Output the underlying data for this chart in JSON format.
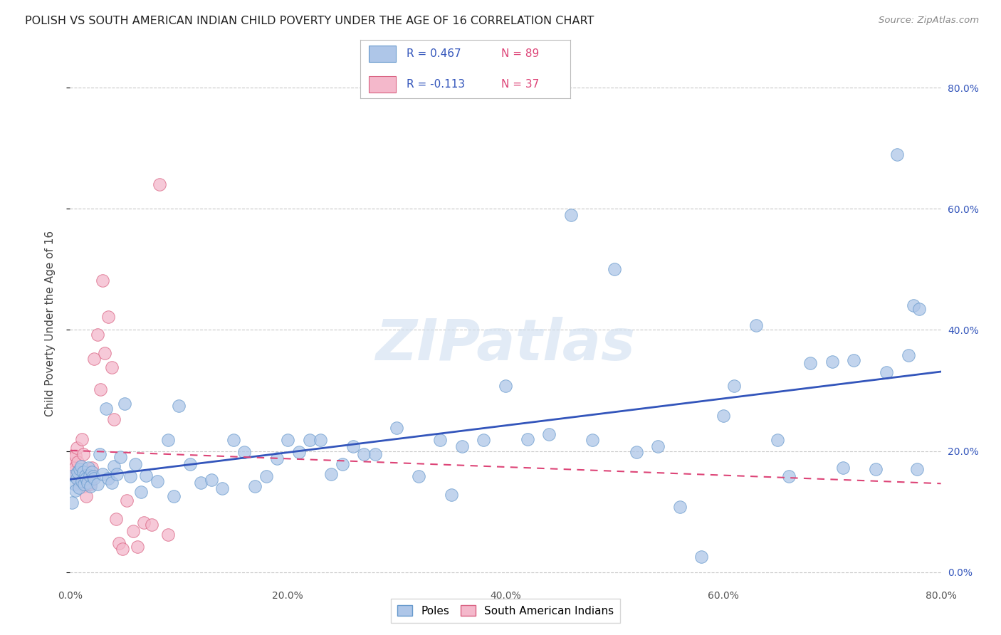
{
  "title": "POLISH VS SOUTH AMERICAN INDIAN CHILD POVERTY UNDER THE AGE OF 16 CORRELATION CHART",
  "source": "Source: ZipAtlas.com",
  "ylabel": "Child Poverty Under the Age of 16",
  "xlim": [
    0,
    0.8
  ],
  "ylim": [
    -0.02,
    0.84
  ],
  "xticks": [
    0.0,
    0.2,
    0.4,
    0.6,
    0.8
  ],
  "yticks": [
    0.0,
    0.2,
    0.4,
    0.6,
    0.8
  ],
  "background_color": "#ffffff",
  "grid_color": "#c8c8c8",
  "poles_color": "#aec6e8",
  "poles_edge_color": "#6699cc",
  "sa_indian_color": "#f4b8cb",
  "sa_indian_edge_color": "#d96080",
  "poles_R": 0.467,
  "poles_N": 89,
  "sa_indian_R": -0.113,
  "sa_indian_N": 37,
  "poles_line_color": "#3355bb",
  "sa_indian_line_color": "#dd4477",
  "watermark_color": "#d0dff0",
  "watermark": "ZIPatlas",
  "legend_R_color": "#3355bb",
  "legend_N_color": "#dd4477",
  "poles_x": [
    0.002,
    0.003,
    0.004,
    0.005,
    0.006,
    0.007,
    0.008,
    0.009,
    0.01,
    0.011,
    0.012,
    0.013,
    0.014,
    0.015,
    0.016,
    0.017,
    0.018,
    0.019,
    0.02,
    0.021,
    0.022,
    0.025,
    0.027,
    0.03,
    0.033,
    0.035,
    0.038,
    0.04,
    0.043,
    0.046,
    0.05,
    0.055,
    0.06,
    0.065,
    0.07,
    0.08,
    0.09,
    0.095,
    0.1,
    0.11,
    0.12,
    0.13,
    0.14,
    0.15,
    0.16,
    0.17,
    0.18,
    0.19,
    0.2,
    0.21,
    0.22,
    0.23,
    0.24,
    0.25,
    0.26,
    0.27,
    0.28,
    0.3,
    0.32,
    0.34,
    0.35,
    0.36,
    0.38,
    0.4,
    0.42,
    0.44,
    0.46,
    0.48,
    0.5,
    0.52,
    0.54,
    0.56,
    0.58,
    0.6,
    0.61,
    0.63,
    0.65,
    0.66,
    0.68,
    0.7,
    0.71,
    0.72,
    0.74,
    0.75,
    0.76,
    0.77,
    0.775,
    0.778,
    0.78
  ],
  "poles_y": [
    0.115,
    0.16,
    0.145,
    0.135,
    0.155,
    0.165,
    0.14,
    0.17,
    0.175,
    0.15,
    0.165,
    0.145,
    0.16,
    0.155,
    0.148,
    0.172,
    0.16,
    0.142,
    0.165,
    0.158,
    0.155,
    0.145,
    0.195,
    0.162,
    0.27,
    0.155,
    0.148,
    0.175,
    0.162,
    0.19,
    0.278,
    0.158,
    0.178,
    0.132,
    0.16,
    0.15,
    0.218,
    0.125,
    0.275,
    0.178,
    0.148,
    0.152,
    0.138,
    0.218,
    0.198,
    0.142,
    0.158,
    0.188,
    0.218,
    0.198,
    0.218,
    0.218,
    0.162,
    0.178,
    0.208,
    0.195,
    0.195,
    0.238,
    0.158,
    0.218,
    0.128,
    0.208,
    0.218,
    0.308,
    0.22,
    0.228,
    0.59,
    0.218,
    0.5,
    0.198,
    0.208,
    0.108,
    0.025,
    0.258,
    0.308,
    0.408,
    0.218,
    0.158,
    0.345,
    0.348,
    0.172,
    0.35,
    0.17,
    0.33,
    0.69,
    0.358,
    0.44,
    0.17,
    0.435
  ],
  "sa_x": [
    0.001,
    0.003,
    0.004,
    0.005,
    0.006,
    0.007,
    0.008,
    0.009,
    0.01,
    0.011,
    0.012,
    0.013,
    0.014,
    0.015,
    0.016,
    0.017,
    0.018,
    0.019,
    0.02,
    0.022,
    0.025,
    0.028,
    0.03,
    0.032,
    0.035,
    0.038,
    0.04,
    0.042,
    0.045,
    0.048,
    0.052,
    0.058,
    0.062,
    0.068,
    0.075,
    0.082,
    0.09
  ],
  "sa_y": [
    0.188,
    0.165,
    0.172,
    0.192,
    0.205,
    0.182,
    0.148,
    0.158,
    0.162,
    0.22,
    0.195,
    0.142,
    0.162,
    0.125,
    0.152,
    0.145,
    0.165,
    0.145,
    0.172,
    0.352,
    0.392,
    0.302,
    0.482,
    0.362,
    0.422,
    0.338,
    0.252,
    0.088,
    0.048,
    0.038,
    0.118,
    0.068,
    0.042,
    0.082,
    0.078,
    0.64,
    0.062
  ]
}
